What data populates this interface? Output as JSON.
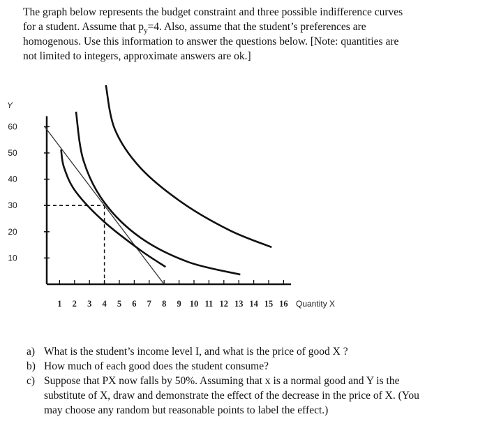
{
  "intro": {
    "line1": "The graph below represents the budget constraint and three possible indifference curves",
    "line2a": "for a student. Assume that p",
    "line2sub": "y",
    "line2b": "=4. Also, assume that the student’s preferences are",
    "line3": "homogenous. Use this information to answer the questions below. [Note: quantities are",
    "line4": "not limited to integers, approximate answers are ok.]"
  },
  "chart": {
    "y_label": "Y",
    "x_label": "Quantity X",
    "xlim": [
      0,
      16.5
    ],
    "ylim": [
      0,
      64
    ],
    "xticks": [
      1,
      2,
      3,
      4,
      5,
      6,
      7,
      8,
      9,
      10,
      11,
      12,
      13,
      14,
      15,
      16
    ],
    "yticks": [
      10,
      20,
      30,
      40,
      50,
      60
    ],
    "budget_line": {
      "x": [
        0,
        8
      ],
      "y": [
        60,
        0
      ]
    },
    "optimum": {
      "x": 4,
      "y": 30
    },
    "curves": [
      {
        "x": [
          1.1,
          1.3,
          2.1,
          4.0,
          6.4,
          8.1
        ],
        "y": [
          51.3,
          44.4,
          35.1,
          23.7,
          13.0,
          6.6
        ]
      },
      {
        "x": [
          2.1,
          2.6,
          4.0,
          6.4,
          9.6,
          13.1
        ],
        "y": [
          65.7,
          47.1,
          31.1,
          17.8,
          8.5,
          3.7
        ]
      },
      {
        "x": [
          4.1,
          4.7,
          6.4,
          9.2,
          12.4,
          15.2
        ],
        "y": [
          75.8,
          59.0,
          44.4,
          31.1,
          20.5,
          14.1
        ]
      }
    ]
  },
  "questions": [
    {
      "marker": "a)",
      "lines": [
        "What is the student’s income level I, and what is the price of good X ?"
      ]
    },
    {
      "marker": "b)",
      "lines": [
        "How much of each good does the student consume?"
      ]
    },
    {
      "marker": "c)",
      "lines": [
        "Suppose that PX  now falls by 50%. Assuming that x is a normal good and Y is the",
        "substitute of X, draw and demonstrate the effect of the decrease in the price of X. (You",
        "may choose any random but reasonable points to label the effect.)"
      ]
    }
  ]
}
